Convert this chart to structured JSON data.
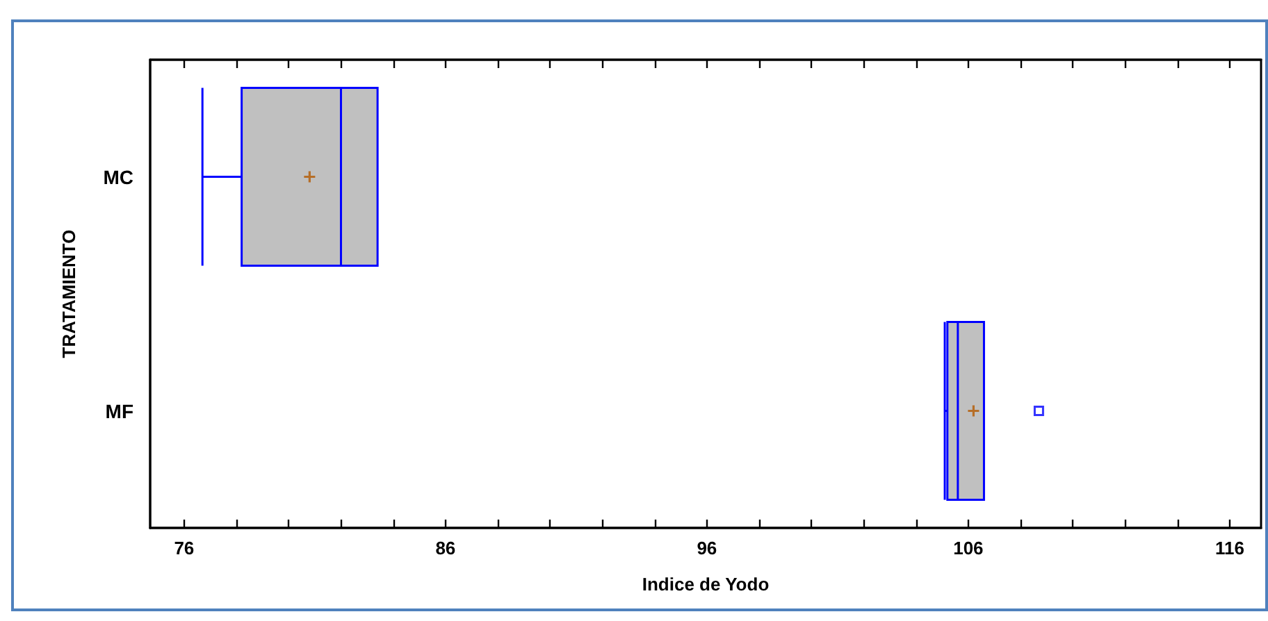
{
  "chart_data": {
    "type": "box",
    "orientation": "horizontal",
    "xlabel": "Indice de Yodo",
    "ylabel": "TRATAMIENTO",
    "categories": [
      "MC",
      "MF"
    ],
    "color": "#c0c0c0",
    "boxes": [
      {
        "low": 76.7,
        "q1": 78.2,
        "median": 82.0,
        "q3": 83.4,
        "high": 83.4,
        "mean": 80.8
      },
      {
        "low": 105.1,
        "q1": 105.2,
        "median": 105.6,
        "q3": 106.6,
        "high": 106.6,
        "mean": 106.2,
        "outliers": [
          108.7
        ]
      }
    ],
    "xlim": [
      74.7,
      117.2
    ],
    "xticks": [
      76,
      {
        "value": 78,
        "label": null
      },
      {
        "value": 80,
        "label": null
      },
      {
        "value": 82,
        "label": null
      },
      {
        "value": 84,
        "label": null
      },
      86,
      {
        "value": 88,
        "label": null
      },
      {
        "value": 90,
        "label": null
      },
      {
        "value": 92,
        "label": null
      },
      {
        "value": 94,
        "label": null
      },
      96,
      {
        "value": 98,
        "label": null
      },
      {
        "value": 100,
        "label": null
      },
      {
        "value": 102,
        "label": null
      },
      {
        "value": 104,
        "label": null
      },
      106,
      {
        "value": 108,
        "label": null
      },
      {
        "value": 110,
        "label": null
      },
      {
        "value": 112,
        "label": null
      },
      {
        "value": 114,
        "label": null
      },
      116
    ]
  }
}
